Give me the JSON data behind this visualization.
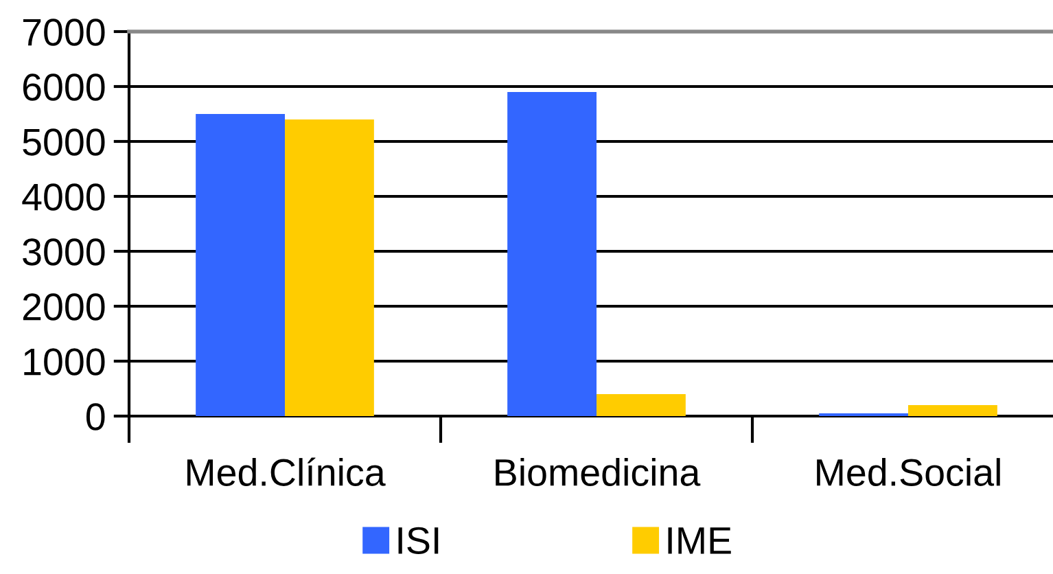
{
  "chart_data": {
    "type": "bar",
    "categories": [
      "Med.Clínica",
      "Biomedicina",
      "Med.Social"
    ],
    "series": [
      {
        "name": "ISI",
        "color": "#3366ff",
        "values": [
          5500,
          5900,
          50
        ]
      },
      {
        "name": "IME",
        "color": "#ffcc00",
        "values": [
          5400,
          400,
          200
        ]
      }
    ],
    "ylim": [
      0,
      7000
    ],
    "yticks": [
      0,
      1000,
      2000,
      3000,
      4000,
      5000,
      6000,
      7000
    ],
    "grid": "y",
    "legend": "bottom"
  }
}
